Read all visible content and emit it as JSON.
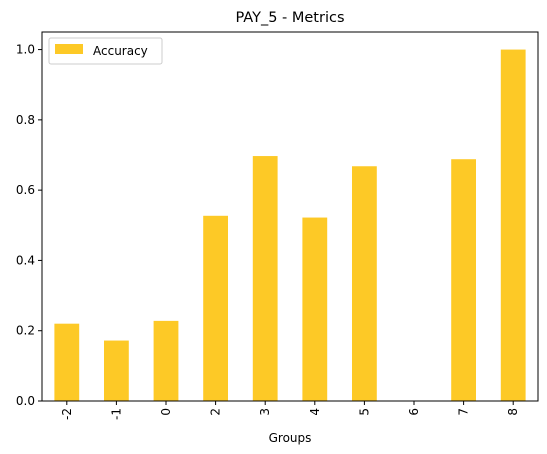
{
  "chart_data": {
    "type": "bar",
    "title": "PAY_5 - Metrics",
    "xlabel": "Groups",
    "ylabel": "",
    "categories": [
      "-2",
      "-1",
      "0",
      "2",
      "3",
      "4",
      "5",
      "6",
      "7",
      "8"
    ],
    "series": [
      {
        "name": "Accuracy",
        "color": "#fdc926",
        "values": [
          0.22,
          0.172,
          0.228,
          0.527,
          0.697,
          0.522,
          0.668,
          0.0,
          0.688,
          1.0
        ]
      }
    ],
    "ylim": [
      0,
      1.05
    ],
    "yticks": [
      "0.0",
      "0.2",
      "0.4",
      "0.6",
      "0.8",
      "1.0"
    ],
    "ytick_values": [
      0,
      0.2,
      0.4,
      0.6,
      0.8,
      1.0
    ],
    "legend_position": "top-left",
    "grid": false,
    "x_tick_rotation": "vertical"
  }
}
